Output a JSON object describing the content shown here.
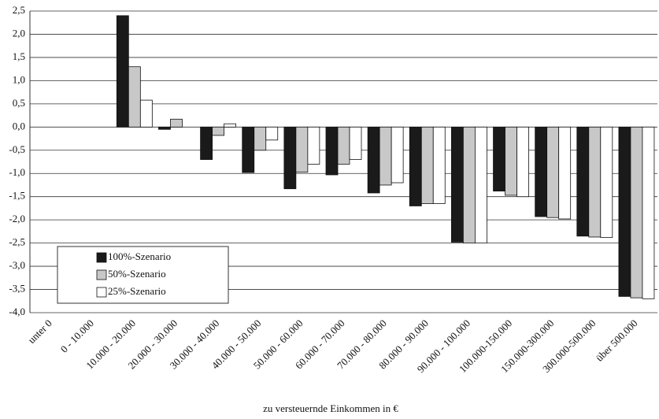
{
  "chart_data": {
    "type": "bar",
    "x_label": "zu versteuernde Einkommen in €",
    "categories": [
      "unter 0",
      "0 - 10.000",
      "10.000 - 20.000",
      "20.000 - 30.000",
      "30.000 - 40.000",
      "40.000 - 50.000",
      "50.000 - 60.000",
      "60.000 - 70.000",
      "70.000 - 80.000",
      "80.000 - 90.000",
      "90.000 - 100.000",
      "100.000-150.000",
      "150.000-300.000",
      "300.000-500.000",
      "über 500.000"
    ],
    "series": [
      {
        "name": "100%-Szenario",
        "color": "#1a1a1a",
        "values": [
          0,
          0,
          2.4,
          -0.05,
          -0.7,
          -0.98,
          -1.33,
          -1.03,
          -1.42,
          -1.7,
          -2.48,
          -1.38,
          -1.93,
          -2.35,
          -3.65
        ]
      },
      {
        "name": "50%-Szenario",
        "color": "#c8c8c8",
        "values": [
          0,
          0,
          1.3,
          0.17,
          -0.18,
          -0.5,
          -0.97,
          -0.8,
          -1.25,
          -1.65,
          -2.5,
          -1.47,
          -1.95,
          -2.37,
          -3.68
        ]
      },
      {
        "name": "25%-Szenario",
        "color": "#ffffff",
        "values": [
          0,
          0,
          0.58,
          0,
          0.07,
          -0.28,
          -0.8,
          -0.7,
          -1.2,
          -1.65,
          -2.5,
          -1.5,
          -1.98,
          -2.38,
          -3.7
        ]
      }
    ],
    "ylim": [
      -4,
      2.5
    ],
    "yticks": [
      {
        "value": 2.5,
        "label": "2,5"
      },
      {
        "value": 2,
        "label": "2,0"
      },
      {
        "value": 1.5,
        "label": "1,5"
      },
      {
        "value": 1,
        "label": "1,0"
      },
      {
        "value": 0.5,
        "label": "0,5"
      },
      {
        "value": 0,
        "label": "0,0"
      },
      {
        "value": -0.5,
        "label": "-0,5"
      },
      {
        "value": -1,
        "label": "-1,0"
      },
      {
        "value": -1.5,
        "label": "-1,5"
      },
      {
        "value": -2,
        "label": "-2,0"
      },
      {
        "value": -2.5,
        "label": "-2,5"
      },
      {
        "value": -3,
        "label": "-3,0"
      },
      {
        "value": -3.5,
        "label": "-3,5"
      },
      {
        "value": -4,
        "label": "-4,0"
      }
    ],
    "grid": true,
    "legend_position": "lower left"
  }
}
